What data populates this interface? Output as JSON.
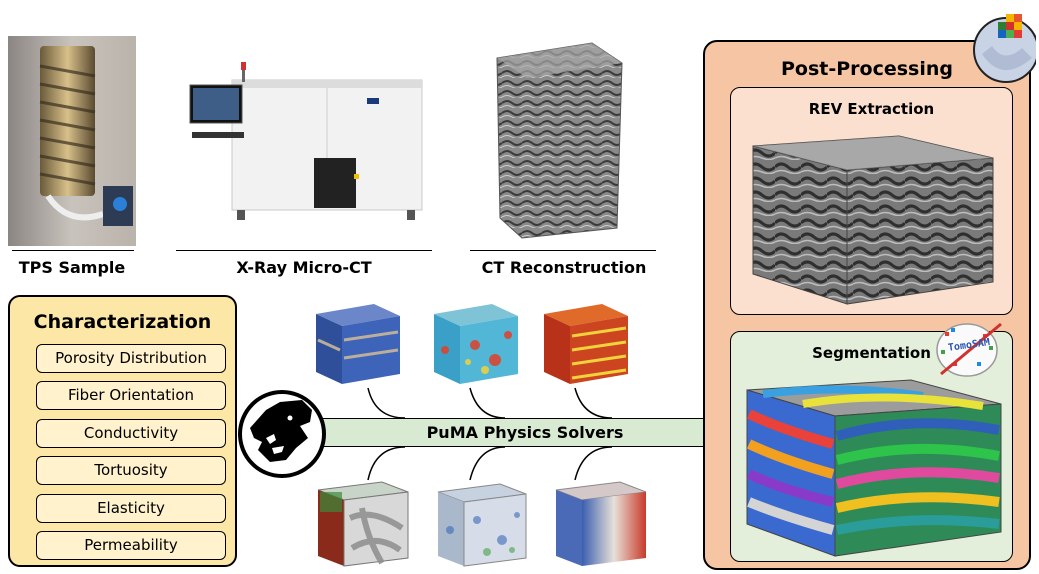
{
  "top_row": {
    "tps_sample": "TPS Sample",
    "microct": "X-Ray Micro-CT",
    "reconstruction": "CT Reconstruction"
  },
  "characterization": {
    "title": "Characterization",
    "items": [
      "Porosity Distribution",
      "Fiber Orientation",
      "Conductivity",
      "Tortuosity",
      "Elasticity",
      "Permeability"
    ]
  },
  "solvers": {
    "label": "PuMA Physics Solvers"
  },
  "post_processing": {
    "title": "Post-Processing",
    "rev": "REV Extraction",
    "segmentation": "Segmentation",
    "tomosam_logo_text": "TomoSAM"
  },
  "colors": {
    "characterization_bg": "#fde7a6",
    "characterization_item": "#fff2cc",
    "post_bg": "#f6c6a4",
    "rev_bg": "#fbe0cf",
    "seg_bg": "#e3efda",
    "solver_bg": "#d9ead3"
  },
  "icons": [
    "puma-logo-icon",
    "tomosam-logo-icon",
    "cube-logo-icon"
  ]
}
